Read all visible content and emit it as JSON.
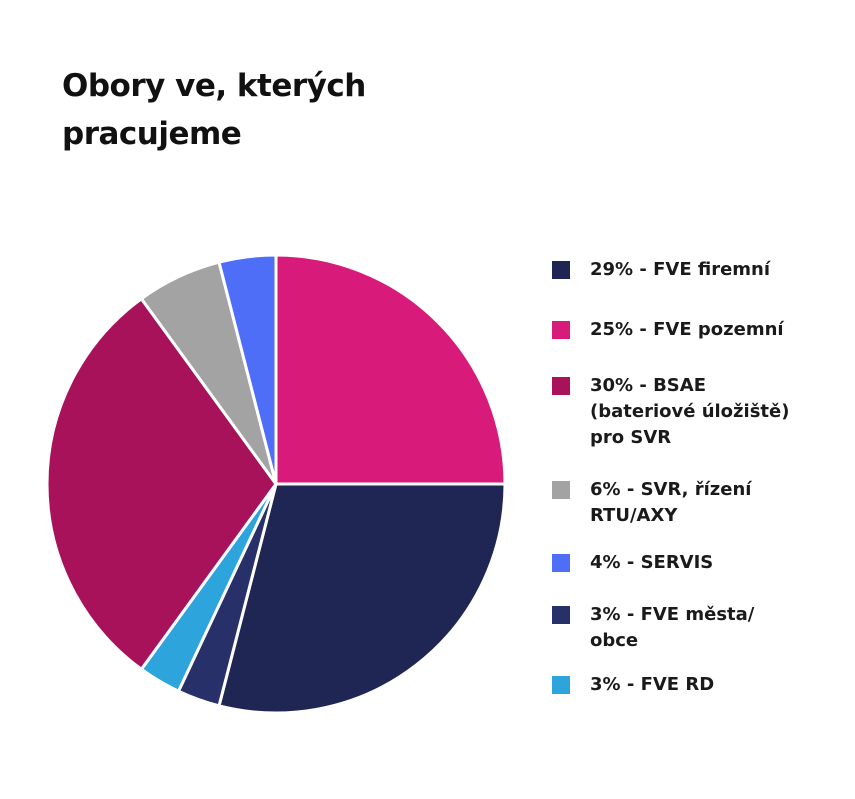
{
  "chart_data": {
    "type": "pie",
    "title": "Obory ve, kterých pracujeme",
    "categories": [
      "29% - FVE firemní",
      "25% - FVE pozemní",
      "30% - BSAE (bateriové úložiště) pro SVR",
      "6% - SVR, řízení RTU/AXY",
      "4% - SERVIS",
      "3% - FVE města/ obce",
      "3% - FVE RD"
    ],
    "values": [
      29,
      25,
      30,
      6,
      4,
      3,
      3
    ],
    "colors": [
      "#1f2654",
      "#d81b7a",
      "#a8125a",
      "#a3a3a3",
      "#4f6ef7",
      "#28306a",
      "#2ea4dd"
    ]
  }
}
